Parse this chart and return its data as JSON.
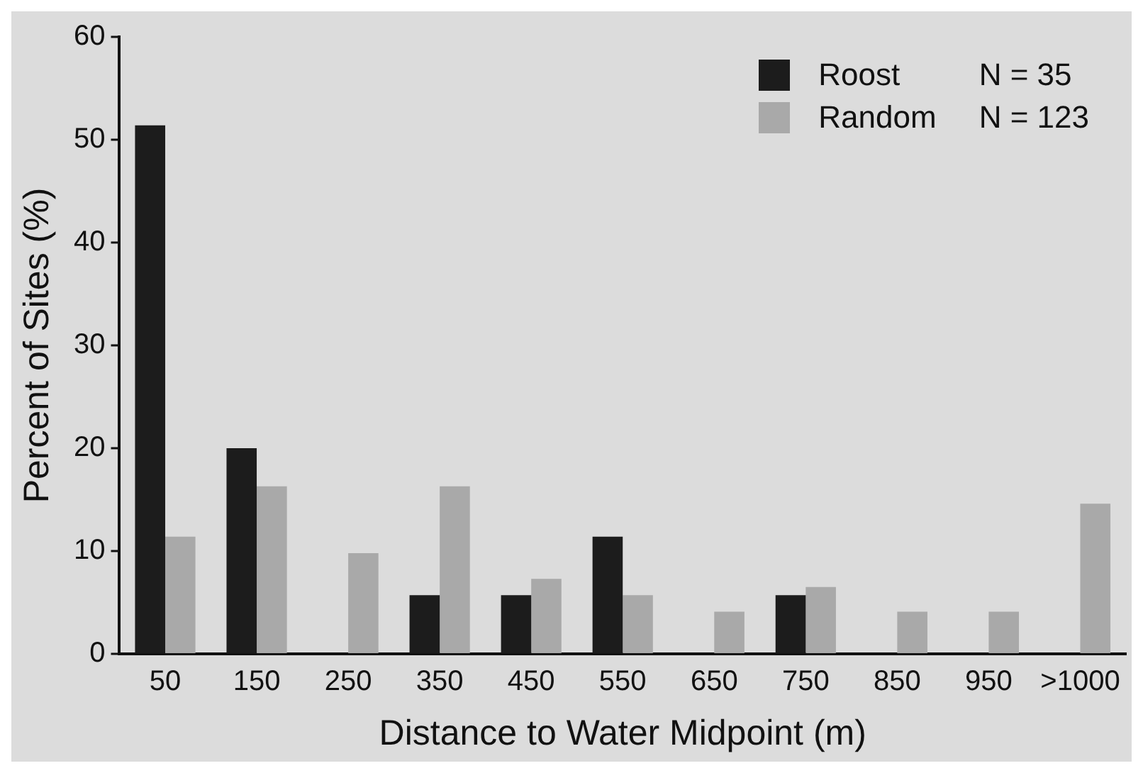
{
  "chart_data": {
    "type": "bar",
    "xlabel": "Distance to Water Midpoint (m)",
    "ylabel": "Percent of Sites (%)",
    "categories": [
      "50",
      "150",
      "250",
      "350",
      "450",
      "550",
      "650",
      "750",
      "850",
      "950",
      ">1000"
    ],
    "series": [
      {
        "name": "Roost",
        "color": "#1c1c1c",
        "values": [
          51.4,
          20.0,
          0,
          5.7,
          5.7,
          11.4,
          0,
          5.7,
          0,
          0,
          0
        ]
      },
      {
        "name": "Random",
        "color": "#a9a9a9",
        "values": [
          11.4,
          16.3,
          9.8,
          16.3,
          7.3,
          5.7,
          4.1,
          6.5,
          4.1,
          4.1,
          14.6
        ]
      }
    ],
    "ylim": [
      0,
      60
    ],
    "yticks": [
      0,
      10,
      20,
      30,
      40,
      50,
      60
    ],
    "grid": false,
    "legend": "top right",
    "annotations": [
      "N = 35",
      "N = 123"
    ]
  }
}
